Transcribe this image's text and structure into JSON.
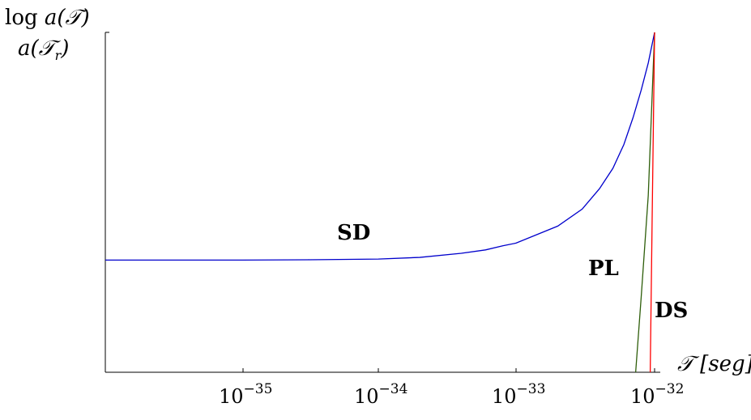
{
  "chart_data": {
    "type": "line",
    "title": "",
    "ylabel_line1": "log a(𝒯)",
    "ylabel_line2": "a(𝒯r)",
    "xlabel_symbol": "𝒯",
    "xlabel_unit": "[seg]",
    "x_scale": "log",
    "grid": false,
    "legend": "none (series labelled inline)",
    "x_ticks": [
      {
        "value": 1e-35,
        "label": "10",
        "exp": "−35"
      },
      {
        "value": 1e-34,
        "label": "10",
        "exp": "−34"
      },
      {
        "value": 1e-33,
        "label": "10",
        "exp": "−33"
      },
      {
        "value": 1e-32,
        "label": "10",
        "exp": "−32"
      }
    ],
    "xlim": [
      1e-36,
      1e-32
    ],
    "ylim": [
      0,
      1
    ],
    "series": [
      {
        "name": "SD",
        "color": "#0000cc",
        "x": [
          1e-36,
          1e-35,
          3e-35,
          1e-34,
          2e-34,
          4e-34,
          6e-34,
          8e-34,
          1e-33,
          2e-33,
          3e-33,
          4e-33,
          5e-33,
          6e-33,
          7e-33,
          8e-33,
          9e-33,
          1e-32
        ],
        "y": [
          0.33,
          0.33,
          0.331,
          0.333,
          0.338,
          0.35,
          0.36,
          0.372,
          0.38,
          0.43,
          0.48,
          0.54,
          0.6,
          0.67,
          0.75,
          0.83,
          0.91,
          1.0
        ]
      },
      {
        "name": "PL",
        "color": "#2e5e0a",
        "x": [
          7.3e-33,
          8e-33,
          9e-33,
          1e-32
        ],
        "y": [
          0.0,
          0.22,
          0.52,
          1.0
        ]
      },
      {
        "name": "DS",
        "color": "#ff0000",
        "x": [
          9.3e-33,
          9.6e-33,
          1e-32
        ],
        "y": [
          0.0,
          0.45,
          1.0
        ]
      }
    ]
  }
}
